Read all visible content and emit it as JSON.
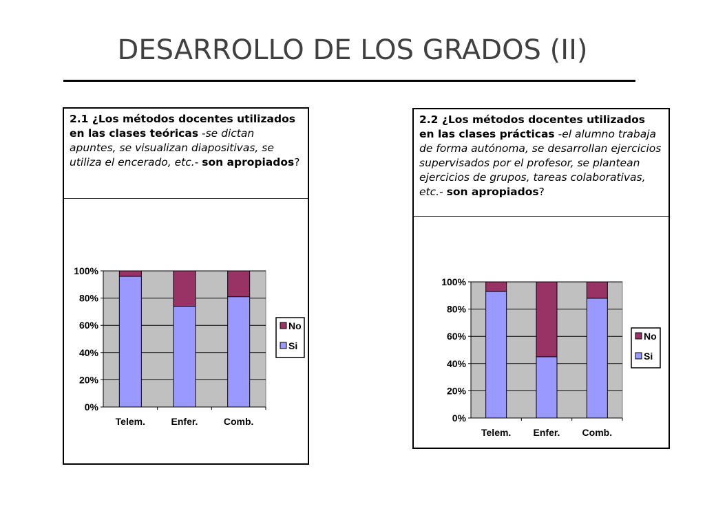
{
  "slide": {
    "title": "DESARROLLO DE LOS GRADOS (II)"
  },
  "colors": {
    "si": "#9999ff",
    "no": "#993366",
    "plot_bg": "#c0c0c0",
    "grid": "#000000"
  },
  "panels": [
    {
      "question": {
        "part1": "2.1 ¿Los métodos docentes utilizados en las clases teóricas",
        "part2": " -",
        "part3": "se dictan apuntes, se visualizan diapositivas, se utiliza el encerado, etc.",
        "part4": "- ",
        "part5": "son apropiados",
        "part6": "?"
      }
    },
    {
      "question": {
        "part1": "2.2 ¿Los métodos docentes utilizados en las clases prácticas",
        "part2": " -",
        "part3": "el alumno trabaja de forma autónoma, se desarrollan ejercicios supervisados por el profesor, se plantean ejercicios de grupos, tareas colaborativas, etc.",
        "part4": "- ",
        "part5": "son apropiados",
        "part6": "?"
      }
    }
  ],
  "chart_data": [
    {
      "type": "bar",
      "stacked": true,
      "percent": true,
      "categories": [
        "Telem.",
        "Enfer.",
        "Comb."
      ],
      "series": [
        {
          "name": "Si",
          "values": [
            96,
            74,
            81
          ]
        },
        {
          "name": "No",
          "values": [
            4,
            26,
            19
          ]
        }
      ],
      "yticks": [
        "0%",
        "20%",
        "40%",
        "60%",
        "80%",
        "100%"
      ],
      "ylim": [
        0,
        100
      ],
      "grid": true,
      "legend": "right",
      "legend_items": [
        "No",
        "Si"
      ]
    },
    {
      "type": "bar",
      "stacked": true,
      "percent": true,
      "categories": [
        "Telem.",
        "Enfer.",
        "Comb."
      ],
      "series": [
        {
          "name": "Si",
          "values": [
            93,
            45,
            88
          ]
        },
        {
          "name": "No",
          "values": [
            7,
            55,
            12
          ]
        }
      ],
      "yticks": [
        "0%",
        "20%",
        "40%",
        "60%",
        "80%",
        "100%"
      ],
      "ylim": [
        0,
        100
      ],
      "grid": true,
      "legend": "right",
      "legend_items": [
        "No",
        "Si"
      ]
    }
  ]
}
